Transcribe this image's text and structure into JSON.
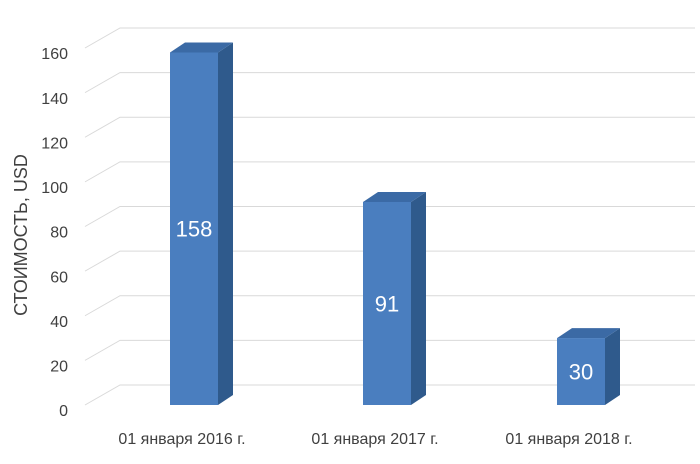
{
  "chart_data": {
    "type": "bar",
    "y_label": "СТОИМОСТЬ, USD",
    "categories": [
      "01 января 2016 г.",
      "01 января 2017 г.",
      "01 января 2018 г."
    ],
    "values": [
      158,
      91,
      30
    ],
    "color": "#4a7ebf",
    "ylim": [
      0,
      160
    ],
    "yticks": [
      0,
      20,
      40,
      60,
      80,
      100,
      120,
      140,
      160
    ],
    "grid": true
  }
}
